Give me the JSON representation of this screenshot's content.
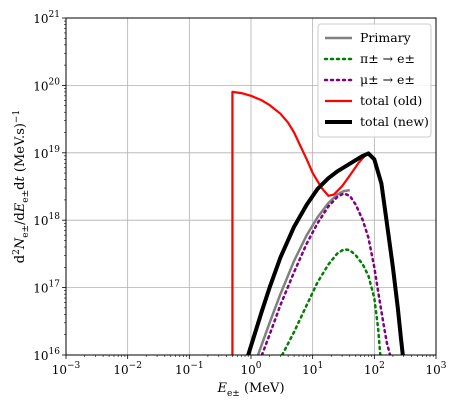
{
  "chart_data": {
    "type": "line",
    "xscale": "log",
    "yscale": "log",
    "xlim": [
      0.001,
      1000
    ],
    "ylim": [
      1e+16,
      1e+21
    ],
    "grid": true,
    "legend_position": "upper-right",
    "xlabel": "E_e± (MeV)",
    "ylabel": "d²N_e± / dE_e± dt (MeV.s)⁻¹",
    "x_ticks": [
      0.001,
      0.01,
      0.1,
      1,
      10,
      100,
      1000
    ],
    "x_tick_labels": [
      {
        "base": "10",
        "exp": "−3"
      },
      {
        "base": "10",
        "exp": "−2"
      },
      {
        "base": "10",
        "exp": "−1"
      },
      {
        "base": "10",
        "exp": "0"
      },
      {
        "base": "10",
        "exp": "1"
      },
      {
        "base": "10",
        "exp": "2"
      },
      {
        "base": "10",
        "exp": "3"
      }
    ],
    "y_ticks": [
      1e+16,
      1e+17,
      1e+18,
      1e+19,
      1e+20,
      1e+21
    ],
    "y_tick_labels": [
      {
        "base": "10",
        "exp": "16"
      },
      {
        "base": "10",
        "exp": "17"
      },
      {
        "base": "10",
        "exp": "18"
      },
      {
        "base": "10",
        "exp": "19"
      },
      {
        "base": "10",
        "exp": "20"
      },
      {
        "base": "10",
        "exp": "21"
      }
    ],
    "series": [
      {
        "name": "Primary",
        "color": "#808080",
        "style": "solid",
        "width": 2.5,
        "x": [
          1.3,
          2,
          3,
          5,
          8,
          12,
          18,
          25,
          32,
          40
        ],
        "y": [
          1e+16,
          3e+16,
          8e+16,
          2.5e+17,
          6e+17,
          1.1e+18,
          1.8e+18,
          2.4e+18,
          2.7e+18,
          2.8e+18
        ]
      },
      {
        "name": "π± → e±",
        "color": "#008000",
        "style": "dotted",
        "width": 2.5,
        "x": [
          3.2,
          5,
          8,
          12,
          18,
          25,
          32,
          40,
          50,
          65,
          80,
          100,
          115,
          125
        ],
        "y": [
          1e+16,
          2.2e+16,
          5.5e+16,
          1.2e+17,
          2.2e+17,
          3.2e+17,
          3.7e+17,
          3.6e+17,
          3e+17,
          2.2e+17,
          1.5e+17,
          7e+16,
          2.5e+16,
          1e+16
        ]
      },
      {
        "name": "μ± → e±",
        "color": "#800080",
        "style": "dotted",
        "width": 2.5,
        "x": [
          1.5,
          2,
          3,
          5,
          8,
          12,
          18,
          25,
          32,
          40,
          50,
          65,
          80,
          100,
          120,
          140,
          160,
          180
        ],
        "y": [
          1e+16,
          2e+16,
          5.5e+16,
          1.7e+17,
          4.5e+17,
          9e+17,
          1.6e+18,
          2.2e+18,
          2.5e+18,
          2.3e+18,
          1.7e+18,
          1e+18,
          5.5e+17,
          2e+17,
          7e+16,
          3e+16,
          1.5e+16,
          1e+16
        ]
      },
      {
        "name": "total (old)",
        "color": "#ff0000",
        "style": "solid",
        "width": 2.2,
        "x": [
          0.5,
          0.5,
          0.7,
          1,
          1.5,
          2,
          3,
          4,
          5,
          6,
          8,
          10,
          14,
          18,
          22,
          30,
          40,
          55,
          70,
          80
        ],
        "y": [
          1e+16,
          8e+19,
          7.7e+19,
          7e+19,
          6e+19,
          5.1e+19,
          3.8e+19,
          2.8e+19,
          2e+19,
          1.4e+19,
          8e+18,
          5e+18,
          3e+18,
          2.3e+18,
          2.4e+18,
          3.2e+18,
          4.6e+18,
          7e+18,
          9e+18,
          1e+19
        ]
      },
      {
        "name": "total (new)",
        "color": "#000000",
        "style": "solid",
        "width": 4.0,
        "x": [
          0.9,
          1.5,
          2,
          3,
          5,
          8,
          12,
          18,
          25,
          35,
          50,
          65,
          80,
          100,
          130,
          160,
          200,
          240,
          270,
          290
        ],
        "y": [
          1e+16,
          4.5e+16,
          1e+17,
          2.8e+17,
          8e+17,
          1.7e+18,
          2.9e+18,
          4.2e+18,
          5.3e+18,
          6.4e+18,
          7.8e+18,
          9e+18,
          9.8e+18,
          8e+18,
          3.5e+18,
          9e+17,
          2e+17,
          5e+16,
          1.8e+16,
          1e+16
        ]
      }
    ]
  }
}
